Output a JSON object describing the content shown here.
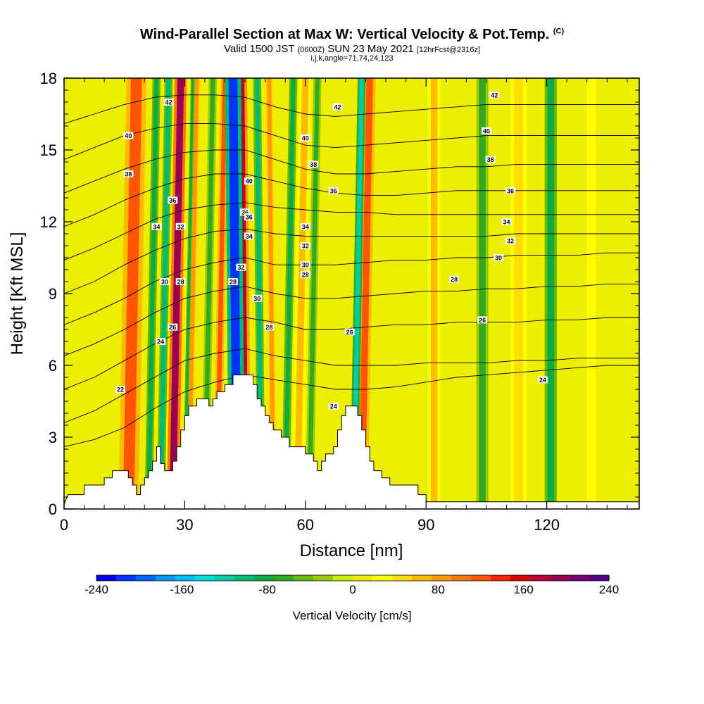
{
  "header": {
    "title": "Wind-Parallel Section at Max W: Vertical Velocity & Pot.Temp.",
    "title_tag": "(C)",
    "valid_pre": "Valid 1500 JST",
    "valid_utc": "(0600Z)",
    "valid_date": "SUN 23 May 2021",
    "valid_fcst": "[12hrFcst@2316z]",
    "indices": "i,j,k,angle=71,74,24,123"
  },
  "chart_data": {
    "type": "heatmap",
    "title": "Wind-Parallel Section at Max W: Vertical Velocity & Pot.Temp.",
    "xlabel": "Distance [nm]",
    "ylabel": "Height [Kft MSL]",
    "xlim": [
      0,
      143
    ],
    "ylim": [
      0,
      18
    ],
    "x_ticks": [
      0,
      30,
      60,
      90,
      120
    ],
    "x_tick_labels": [
      "0",
      "30",
      "60",
      "90",
      "120"
    ],
    "y_ticks": [
      0,
      3,
      6,
      9,
      12,
      15,
      18
    ],
    "y_tick_labels": [
      "0",
      "3",
      "6",
      "9",
      "12",
      "15",
      "18"
    ],
    "colorbar": {
      "label": "Vertical Velocity [cm/s]",
      "min": -240,
      "max": 240,
      "tick_values": [
        -240,
        -160,
        -80,
        0,
        80,
        160,
        240
      ],
      "tick_labels": [
        "-240",
        "-160",
        "-80",
        "0",
        "80",
        "160",
        "240"
      ],
      "colors": [
        "#0000ee",
        "#0033ff",
        "#0066ff",
        "#0099ff",
        "#00bbff",
        "#00dddd",
        "#00ccaa",
        "#00bb77",
        "#11aa44",
        "#33aa22",
        "#66bb00",
        "#99cc00",
        "#ccee00",
        "#eeee00",
        "#ffff00",
        "#ffdd00",
        "#ffbb00",
        "#ff9900",
        "#ff7700",
        "#ff5500",
        "#ff2200",
        "#dd0000",
        "#bb0033",
        "#990055",
        "#770077",
        "#550088"
      ]
    },
    "terrain": [
      {
        "x": 0,
        "h": 0.2
      },
      {
        "x": 1,
        "h": 0.6
      },
      {
        "x": 5,
        "h": 0.6
      },
      {
        "x": 5,
        "h": 1.0
      },
      {
        "x": 8,
        "h": 1.0
      },
      {
        "x": 10,
        "h": 1.0
      },
      {
        "x": 10,
        "h": 1.3
      },
      {
        "x": 12,
        "h": 1.3
      },
      {
        "x": 12,
        "h": 1.6
      },
      {
        "x": 16,
        "h": 1.6
      },
      {
        "x": 16,
        "h": 1.3
      },
      {
        "x": 17,
        "h": 1.3
      },
      {
        "x": 17,
        "h": 1.0
      },
      {
        "x": 18,
        "h": 1.0
      },
      {
        "x": 18,
        "h": 0.6
      },
      {
        "x": 19,
        "h": 0.6
      },
      {
        "x": 19,
        "h": 1.0
      },
      {
        "x": 20,
        "h": 1.0
      },
      {
        "x": 20,
        "h": 1.3
      },
      {
        "x": 21,
        "h": 1.3
      },
      {
        "x": 21,
        "h": 1.6
      },
      {
        "x": 22,
        "h": 1.6
      },
      {
        "x": 22,
        "h": 2.0
      },
      {
        "x": 23,
        "h": 2.0
      },
      {
        "x": 23,
        "h": 2.6
      },
      {
        "x": 24,
        "h": 2.6
      },
      {
        "x": 24,
        "h": 1.9
      },
      {
        "x": 25,
        "h": 1.9
      },
      {
        "x": 25,
        "h": 1.6
      },
      {
        "x": 27,
        "h": 1.6
      },
      {
        "x": 27,
        "h": 2.0
      },
      {
        "x": 28,
        "h": 2.0
      },
      {
        "x": 28,
        "h": 2.6
      },
      {
        "x": 29,
        "h": 2.6
      },
      {
        "x": 29,
        "h": 3.3
      },
      {
        "x": 30,
        "h": 3.3
      },
      {
        "x": 30,
        "h": 3.9
      },
      {
        "x": 31,
        "h": 3.9
      },
      {
        "x": 31,
        "h": 4.3
      },
      {
        "x": 33,
        "h": 4.3
      },
      {
        "x": 33,
        "h": 4.6
      },
      {
        "x": 36,
        "h": 4.6
      },
      {
        "x": 36,
        "h": 4.3
      },
      {
        "x": 37,
        "h": 4.3
      },
      {
        "x": 37,
        "h": 4.6
      },
      {
        "x": 38,
        "h": 4.6
      },
      {
        "x": 38,
        "h": 4.9
      },
      {
        "x": 40,
        "h": 4.9
      },
      {
        "x": 40,
        "h": 5.2
      },
      {
        "x": 42,
        "h": 5.2
      },
      {
        "x": 42,
        "h": 5.6
      },
      {
        "x": 47,
        "h": 5.6
      },
      {
        "x": 47,
        "h": 5.2
      },
      {
        "x": 48,
        "h": 5.2
      },
      {
        "x": 48,
        "h": 4.6
      },
      {
        "x": 49,
        "h": 4.6
      },
      {
        "x": 49,
        "h": 4.3
      },
      {
        "x": 50,
        "h": 4.3
      },
      {
        "x": 50,
        "h": 3.9
      },
      {
        "x": 51,
        "h": 3.9
      },
      {
        "x": 51,
        "h": 3.6
      },
      {
        "x": 52,
        "h": 3.6
      },
      {
        "x": 52,
        "h": 3.3
      },
      {
        "x": 54,
        "h": 3.3
      },
      {
        "x": 54,
        "h": 3.0
      },
      {
        "x": 56,
        "h": 3.0
      },
      {
        "x": 56,
        "h": 2.6
      },
      {
        "x": 60,
        "h": 2.6
      },
      {
        "x": 60,
        "h": 2.3
      },
      {
        "x": 62,
        "h": 2.3
      },
      {
        "x": 62,
        "h": 2.0
      },
      {
        "x": 63,
        "h": 2.0
      },
      {
        "x": 63,
        "h": 1.6
      },
      {
        "x": 64,
        "h": 1.6
      },
      {
        "x": 64,
        "h": 2.0
      },
      {
        "x": 65,
        "h": 2.0
      },
      {
        "x": 65,
        "h": 2.3
      },
      {
        "x": 67,
        "h": 2.3
      },
      {
        "x": 67,
        "h": 2.6
      },
      {
        "x": 68,
        "h": 2.6
      },
      {
        "x": 68,
        "h": 3.3
      },
      {
        "x": 69,
        "h": 3.3
      },
      {
        "x": 69,
        "h": 3.9
      },
      {
        "x": 70,
        "h": 3.9
      },
      {
        "x": 70,
        "h": 4.3
      },
      {
        "x": 73,
        "h": 4.3
      },
      {
        "x": 73,
        "h": 3.9
      },
      {
        "x": 74,
        "h": 3.9
      },
      {
        "x": 74,
        "h": 3.3
      },
      {
        "x": 75,
        "h": 3.3
      },
      {
        "x": 75,
        "h": 2.6
      },
      {
        "x": 76,
        "h": 2.6
      },
      {
        "x": 76,
        "h": 2.0
      },
      {
        "x": 77,
        "h": 2.0
      },
      {
        "x": 77,
        "h": 1.6
      },
      {
        "x": 79,
        "h": 1.6
      },
      {
        "x": 79,
        "h": 1.3
      },
      {
        "x": 81,
        "h": 1.3
      },
      {
        "x": 81,
        "h": 1.0
      },
      {
        "x": 88,
        "h": 1.0
      },
      {
        "x": 88,
        "h": 0.6
      },
      {
        "x": 90,
        "h": 0.6
      },
      {
        "x": 90,
        "h": 0.3
      },
      {
        "x": 143,
        "h": 0.3
      }
    ],
    "updraft_bands": [
      {
        "x": 16,
        "w": 5,
        "value": 120,
        "tilt": 2
      },
      {
        "x": 27,
        "w": 3,
        "value": 200,
        "tilt": 2
      },
      {
        "x": 31,
        "w": 2,
        "value": 80,
        "tilt": 2
      },
      {
        "x": 38,
        "w": 2,
        "value": 120,
        "tilt": 2
      },
      {
        "x": 45,
        "w": 3,
        "value": 180,
        "tilt": -1
      },
      {
        "x": 52,
        "w": 2,
        "value": 80,
        "tilt": -1
      },
      {
        "x": 58,
        "w": 3,
        "value": 60,
        "tilt": 2
      },
      {
        "x": 74,
        "w": 3,
        "value": 120,
        "tilt": 2
      },
      {
        "x": 92,
        "w": 3,
        "value": 70,
        "tilt": 0
      },
      {
        "x": 113,
        "w": 4,
        "value": 40,
        "tilt": 0
      },
      {
        "x": 131,
        "w": 4,
        "value": 30,
        "tilt": 0
      }
    ],
    "downdraft_bands": [
      {
        "x": 21,
        "w": 2,
        "value": -80,
        "tilt": 2
      },
      {
        "x": 24,
        "w": 2,
        "value": -100,
        "tilt": 2
      },
      {
        "x": 30,
        "w": 1,
        "value": -80,
        "tilt": 2
      },
      {
        "x": 35,
        "w": 2,
        "value": -60,
        "tilt": 2
      },
      {
        "x": 43,
        "w": 4,
        "value": -220,
        "tilt": -1
      },
      {
        "x": 49,
        "w": 2,
        "value": -100,
        "tilt": -1
      },
      {
        "x": 55,
        "w": 2,
        "value": -80,
        "tilt": 2
      },
      {
        "x": 61,
        "w": 2,
        "value": -60,
        "tilt": 2
      },
      {
        "x": 72,
        "w": 2,
        "value": -120,
        "tilt": 2
      },
      {
        "x": 104,
        "w": 3,
        "value": -60,
        "tilt": 0
      },
      {
        "x": 121,
        "w": 3,
        "value": -90,
        "tilt": 0
      }
    ],
    "theta_contours": [
      {
        "value": 22,
        "label": "22",
        "h": [
          2.6,
          2.9,
          3.4,
          4.2,
          4.9,
          5.3,
          5.6,
          5.4,
          5.2,
          5.0,
          5.0,
          5.1,
          5.3,
          5.5,
          5.6,
          5.7,
          5.8,
          5.9,
          6.0,
          6.0
        ]
      },
      {
        "value": 24,
        "label": "24",
        "h": [
          3.6,
          4.1,
          4.8,
          5.5,
          6.2,
          6.5,
          6.7,
          6.4,
          6.2,
          6.0,
          6.0,
          6.0,
          6.1,
          6.1,
          6.1,
          6.2,
          6.2,
          6.3,
          6.3,
          6.3
        ]
      },
      {
        "value": 26,
        "label": "26",
        "h": [
          5.0,
          5.5,
          6.2,
          6.9,
          7.5,
          7.8,
          8.0,
          7.8,
          7.5,
          7.5,
          7.6,
          7.7,
          7.7,
          7.8,
          7.8,
          7.8,
          7.9,
          7.9,
          8.0,
          8.0
        ]
      },
      {
        "value": 28,
        "label": "28",
        "h": [
          6.4,
          6.9,
          7.5,
          8.2,
          8.8,
          9.1,
          9.3,
          9.0,
          8.8,
          8.8,
          8.9,
          9.0,
          9.1,
          9.1,
          9.2,
          9.2,
          9.3,
          9.3,
          9.4,
          9.4
        ]
      },
      {
        "value": 30,
        "label": "30",
        "h": [
          7.7,
          8.2,
          8.8,
          9.5,
          10.0,
          10.3,
          10.5,
          10.2,
          10.2,
          10.2,
          10.3,
          10.4,
          10.4,
          10.5,
          10.5,
          10.6,
          10.6,
          10.6,
          10.7,
          10.7
        ]
      },
      {
        "value": 32,
        "label": "32",
        "h": [
          9.0,
          9.5,
          10.2,
          10.8,
          11.3,
          11.6,
          11.7,
          11.5,
          11.4,
          11.4,
          11.4,
          11.4,
          11.4,
          11.4,
          11.4,
          11.5,
          11.5,
          11.5,
          11.5,
          11.5
        ]
      },
      {
        "value": 34,
        "label": "34",
        "h": [
          10.4,
          10.9,
          11.5,
          12.1,
          12.5,
          12.7,
          12.8,
          12.6,
          12.5,
          12.4,
          12.4,
          12.3,
          12.3,
          12.3,
          12.3,
          12.3,
          12.3,
          12.3,
          12.3,
          12.3
        ]
      },
      {
        "value": 36,
        "label": "36",
        "h": [
          11.8,
          12.3,
          12.9,
          13.4,
          13.8,
          14.0,
          14.0,
          13.7,
          13.4,
          13.2,
          13.1,
          13.1,
          13.2,
          13.3,
          13.3,
          13.3,
          13.3,
          13.3,
          13.3,
          13.3
        ]
      },
      {
        "value": 38,
        "label": "38",
        "h": [
          13.2,
          13.7,
          14.2,
          14.6,
          14.9,
          15.0,
          15.0,
          14.6,
          14.2,
          14.0,
          14.0,
          14.1,
          14.2,
          14.3,
          14.3,
          14.4,
          14.4,
          14.4,
          14.4,
          14.4
        ]
      },
      {
        "value": 40,
        "label": "40",
        "h": [
          14.6,
          15.1,
          15.6,
          15.9,
          16.1,
          16.1,
          16.0,
          15.6,
          15.2,
          15.1,
          15.2,
          15.3,
          15.4,
          15.5,
          15.6,
          15.6,
          15.6,
          15.6,
          15.6,
          15.6
        ]
      },
      {
        "value": 42,
        "label": "42",
        "h": [
          16.1,
          16.5,
          16.9,
          17.2,
          17.3,
          17.3,
          17.2,
          16.8,
          16.5,
          16.4,
          16.5,
          16.6,
          16.7,
          16.8,
          16.9,
          16.9,
          16.9,
          16.9,
          16.9,
          16.9
        ]
      }
    ],
    "theta_contour_x": [
      0,
      7.5,
      15,
      22.5,
      30,
      37.5,
      45,
      52.5,
      60,
      67.5,
      75,
      82.5,
      90,
      97.5,
      105,
      112.5,
      120,
      127.5,
      135,
      143
    ],
    "contour_labels": [
      {
        "x": 14,
        "y": 5.0,
        "text": "22"
      },
      {
        "x": 24,
        "y": 7.0,
        "text": "24"
      },
      {
        "x": 27,
        "y": 7.6,
        "text": "26"
      },
      {
        "x": 25,
        "y": 9.5,
        "text": "30"
      },
      {
        "x": 29,
        "y": 9.5,
        "text": "28"
      },
      {
        "x": 23,
        "y": 11.8,
        "text": "34"
      },
      {
        "x": 29,
        "y": 11.8,
        "text": "32"
      },
      {
        "x": 27,
        "y": 12.9,
        "text": "36"
      },
      {
        "x": 16,
        "y": 14.0,
        "text": "38"
      },
      {
        "x": 16,
        "y": 15.6,
        "text": "40"
      },
      {
        "x": 26,
        "y": 17.0,
        "text": "42"
      },
      {
        "x": 45,
        "y": 12.4,
        "text": "36"
      },
      {
        "x": 46,
        "y": 13.7,
        "text": "40"
      },
      {
        "x": 46,
        "y": 12.2,
        "text": "36"
      },
      {
        "x": 46,
        "y": 11.4,
        "text": "34"
      },
      {
        "x": 44,
        "y": 10.1,
        "text": "32"
      },
      {
        "x": 42,
        "y": 9.5,
        "text": "28"
      },
      {
        "x": 48,
        "y": 8.8,
        "text": "30"
      },
      {
        "x": 51,
        "y": 7.6,
        "text": "28"
      },
      {
        "x": 60,
        "y": 11.8,
        "text": "34"
      },
      {
        "x": 60,
        "y": 11.0,
        "text": "32"
      },
      {
        "x": 60,
        "y": 10.2,
        "text": "30"
      },
      {
        "x": 60,
        "y": 9.8,
        "text": "28"
      },
      {
        "x": 62,
        "y": 14.4,
        "text": "38"
      },
      {
        "x": 60,
        "y": 15.5,
        "text": "40"
      },
      {
        "x": 68,
        "y": 16.8,
        "text": "42"
      },
      {
        "x": 67,
        "y": 13.3,
        "text": "36"
      },
      {
        "x": 71,
        "y": 7.4,
        "text": "26"
      },
      {
        "x": 67,
        "y": 4.3,
        "text": "24"
      },
      {
        "x": 97,
        "y": 9.6,
        "text": "28"
      },
      {
        "x": 104,
        "y": 7.9,
        "text": "26"
      },
      {
        "x": 108,
        "y": 10.5,
        "text": "30"
      },
      {
        "x": 111,
        "y": 11.2,
        "text": "32"
      },
      {
        "x": 110,
        "y": 12.0,
        "text": "34"
      },
      {
        "x": 111,
        "y": 13.3,
        "text": "36"
      },
      {
        "x": 106,
        "y": 14.6,
        "text": "38"
      },
      {
        "x": 105,
        "y": 15.8,
        "text": "40"
      },
      {
        "x": 107,
        "y": 17.3,
        "text": "42"
      },
      {
        "x": 119,
        "y": 5.4,
        "text": "24"
      }
    ]
  }
}
